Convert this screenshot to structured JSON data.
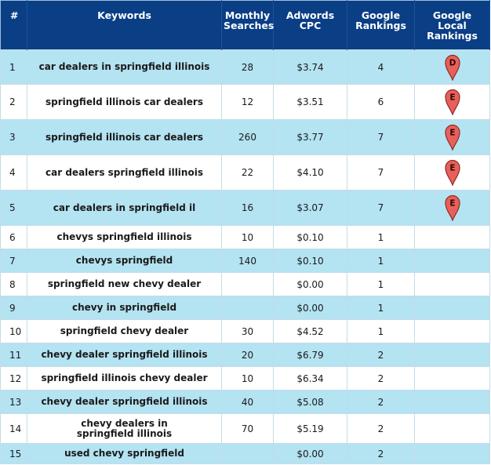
{
  "headers": {
    "num": "#",
    "keywords": "Keywords",
    "monthly_searches": [
      "Monthly",
      "Searches"
    ],
    "adwords_cpc": [
      "Adwords",
      "CPC"
    ],
    "google_rankings": [
      "Google",
      "Rankings"
    ],
    "google_local_rankings": [
      "Google",
      "Local",
      "Rankings"
    ]
  },
  "colors": {
    "header_bg": "#0a3e85",
    "row_highlight": "#b4e3f2",
    "pin_fill": "#e8605a"
  },
  "rows": [
    {
      "num": "1",
      "keyword": "car dealers in springfield illinois",
      "searches": "28",
      "cpc": "$3.74",
      "rank": "4",
      "local": "D"
    },
    {
      "num": "2",
      "keyword": "springfield illinois car dealers",
      "searches": "12",
      "cpc": "$3.51",
      "rank": "6",
      "local": "E"
    },
    {
      "num": "3",
      "keyword": "springfield illinois car dealers",
      "searches": "260",
      "cpc": "$3.77",
      "rank": "7",
      "local": "E"
    },
    {
      "num": "4",
      "keyword": "car dealers springfield illinois",
      "searches": "22",
      "cpc": "$4.10",
      "rank": "7",
      "local": "E"
    },
    {
      "num": "5",
      "keyword": "car dealers in springfield il",
      "searches": "16",
      "cpc": "$3.07",
      "rank": "7",
      "local": "E"
    },
    {
      "num": "6",
      "keyword": "chevys springfield illinois",
      "searches": "10",
      "cpc": "$0.10",
      "rank": "1",
      "local": ""
    },
    {
      "num": "7",
      "keyword": "chevys springfield",
      "searches": "140",
      "cpc": "$0.10",
      "rank": "1",
      "local": ""
    },
    {
      "num": "8",
      "keyword": "springfield new chevy dealer",
      "searches": "",
      "cpc": "$0.00",
      "rank": "1",
      "local": ""
    },
    {
      "num": "9",
      "keyword": "chevy in springfield",
      "searches": "",
      "cpc": "$0.00",
      "rank": "1",
      "local": ""
    },
    {
      "num": "10",
      "keyword": "springfield chevy dealer",
      "searches": "30",
      "cpc": "$4.52",
      "rank": "1",
      "local": ""
    },
    {
      "num": "11",
      "keyword": "chevy dealer springfield illinois",
      "searches": "20",
      "cpc": "$6.79",
      "rank": "2",
      "local": ""
    },
    {
      "num": "12",
      "keyword": "springfield illinois chevy dealer",
      "searches": "10",
      "cpc": "$6.34",
      "rank": "2",
      "local": ""
    },
    {
      "num": "13",
      "keyword": "chevy dealer springfield illinois",
      "searches": "40",
      "cpc": "$5.08",
      "rank": "2",
      "local": ""
    },
    {
      "num": "14",
      "keyword": [
        "chevy dealers in",
        "springfield illinois"
      ],
      "searches": "70",
      "cpc": "$5.19",
      "rank": "2",
      "local": ""
    },
    {
      "num": "15",
      "keyword": "used chevy springfield",
      "searches": "",
      "cpc": "$0.00",
      "rank": "2",
      "local": ""
    }
  ]
}
